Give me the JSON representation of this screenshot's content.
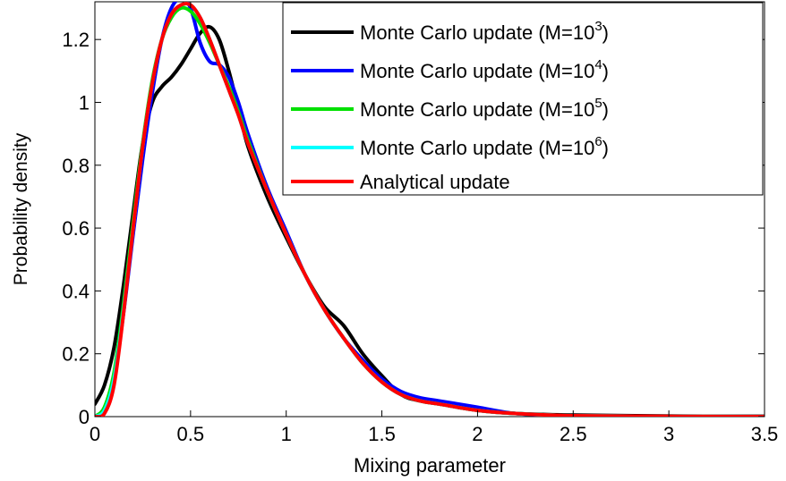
{
  "chart_data": {
    "type": "line",
    "xlabel": "Mixing parameter",
    "ylabel": "Probability density",
    "xlim": [
      0,
      3.5
    ],
    "ylim": [
      0,
      1.32
    ],
    "x_ticks": [
      0,
      0.5,
      1,
      1.5,
      2,
      2.5,
      3,
      3.5
    ],
    "x_tick_labels": [
      "0",
      "0.5",
      "1",
      "1.5",
      "2",
      "2.5",
      "3",
      "3.5"
    ],
    "y_ticks": [
      0,
      0.2,
      0.4,
      0.6,
      0.8,
      1.0,
      1.2
    ],
    "y_tick_labels": [
      "0",
      "0.2",
      "0.4",
      "0.6",
      "0.8",
      "1",
      "1.2"
    ],
    "grid": false,
    "legend_position": "top-right",
    "series": [
      {
        "name": "Monte Carlo update (M=10",
        "superscript": "3",
        "name_suffix": ")",
        "color": "#000000",
        "x": [
          0,
          0.05,
          0.1,
          0.15,
          0.2,
          0.25,
          0.3,
          0.35,
          0.4,
          0.45,
          0.5,
          0.55,
          0.6,
          0.65,
          0.7,
          0.75,
          0.8,
          0.9,
          1.0,
          1.1,
          1.2,
          1.3,
          1.4,
          1.5,
          1.6,
          1.7,
          1.8,
          2.0,
          2.2,
          2.5,
          3.0,
          3.5
        ],
        "y": [
          0.04,
          0.1,
          0.22,
          0.42,
          0.65,
          0.87,
          1.0,
          1.05,
          1.08,
          1.12,
          1.17,
          1.22,
          1.24,
          1.2,
          1.1,
          0.98,
          0.86,
          0.7,
          0.57,
          0.45,
          0.35,
          0.29,
          0.2,
          0.13,
          0.07,
          0.05,
          0.04,
          0.02,
          0.01,
          0.005,
          0.002,
          0.001
        ]
      },
      {
        "name": "Monte Carlo update (M=10",
        "superscript": "4",
        "name_suffix": ")",
        "color": "#0000ff",
        "x": [
          0,
          0.05,
          0.1,
          0.15,
          0.2,
          0.25,
          0.3,
          0.35,
          0.4,
          0.45,
          0.5,
          0.55,
          0.6,
          0.65,
          0.7,
          0.75,
          0.8,
          0.9,
          1.0,
          1.1,
          1.2,
          1.3,
          1.4,
          1.5,
          1.6,
          1.7,
          1.8,
          2.0,
          2.2,
          2.5,
          3.0,
          3.5
        ],
        "y": [
          0.0,
          0.02,
          0.12,
          0.33,
          0.58,
          0.82,
          1.03,
          1.2,
          1.3,
          1.33,
          1.3,
          1.19,
          1.13,
          1.12,
          1.08,
          1.0,
          0.9,
          0.73,
          0.59,
          0.45,
          0.34,
          0.25,
          0.18,
          0.12,
          0.08,
          0.06,
          0.05,
          0.03,
          0.01,
          0.003,
          0.001,
          0.0
        ]
      },
      {
        "name": "Monte Carlo update (M=10",
        "superscript": "5",
        "name_suffix": ")",
        "color": "#00e000",
        "x": [
          0,
          0.05,
          0.1,
          0.15,
          0.2,
          0.25,
          0.3,
          0.35,
          0.4,
          0.45,
          0.5,
          0.55,
          0.6,
          0.65,
          0.7,
          0.75,
          0.8,
          0.9,
          1.0,
          1.1,
          1.2,
          1.3,
          1.4,
          1.5,
          1.6,
          1.7,
          1.8,
          2.0,
          2.2,
          2.5,
          3.0,
          3.5
        ],
        "y": [
          0.0,
          0.03,
          0.14,
          0.36,
          0.62,
          0.87,
          1.07,
          1.2,
          1.27,
          1.3,
          1.29,
          1.25,
          1.19,
          1.12,
          1.05,
          0.97,
          0.88,
          0.72,
          0.58,
          0.45,
          0.34,
          0.25,
          0.17,
          0.11,
          0.07,
          0.05,
          0.04,
          0.02,
          0.01,
          0.003,
          0.001,
          0.0
        ]
      },
      {
        "name": "Monte Carlo update (M=10",
        "superscript": "6",
        "name_suffix": ")",
        "color": "#00ffff",
        "x": [
          0,
          0.05,
          0.1,
          0.15,
          0.2,
          0.25,
          0.3,
          0.35,
          0.4,
          0.45,
          0.5,
          0.55,
          0.6,
          0.65,
          0.7,
          0.75,
          0.8,
          0.9,
          1.0,
          1.1,
          1.2,
          1.3,
          1.4,
          1.5,
          1.6,
          1.7,
          1.8,
          2.0,
          2.2,
          2.5,
          3.0,
          3.5
        ],
        "y": [
          0.0,
          0.02,
          0.12,
          0.34,
          0.6,
          0.86,
          1.06,
          1.2,
          1.28,
          1.31,
          1.31,
          1.27,
          1.2,
          1.12,
          1.04,
          0.96,
          0.87,
          0.72,
          0.58,
          0.45,
          0.34,
          0.25,
          0.17,
          0.11,
          0.07,
          0.05,
          0.04,
          0.02,
          0.01,
          0.003,
          0.001,
          0.0
        ]
      },
      {
        "name": "Analytical update",
        "superscript": "",
        "name_suffix": "",
        "color": "#ff0000",
        "x": [
          0,
          0.05,
          0.1,
          0.15,
          0.2,
          0.25,
          0.3,
          0.35,
          0.4,
          0.45,
          0.5,
          0.55,
          0.6,
          0.65,
          0.7,
          0.75,
          0.8,
          0.9,
          1.0,
          1.1,
          1.2,
          1.3,
          1.4,
          1.5,
          1.6,
          1.7,
          1.8,
          2.0,
          2.2,
          2.5,
          3.0,
          3.5
        ],
        "y": [
          0.0,
          0.01,
          0.1,
          0.33,
          0.6,
          0.86,
          1.06,
          1.2,
          1.28,
          1.31,
          1.31,
          1.27,
          1.2,
          1.12,
          1.04,
          0.96,
          0.87,
          0.72,
          0.58,
          0.45,
          0.34,
          0.25,
          0.17,
          0.11,
          0.07,
          0.05,
          0.04,
          0.02,
          0.01,
          0.003,
          0.001,
          0.0
        ]
      }
    ]
  }
}
